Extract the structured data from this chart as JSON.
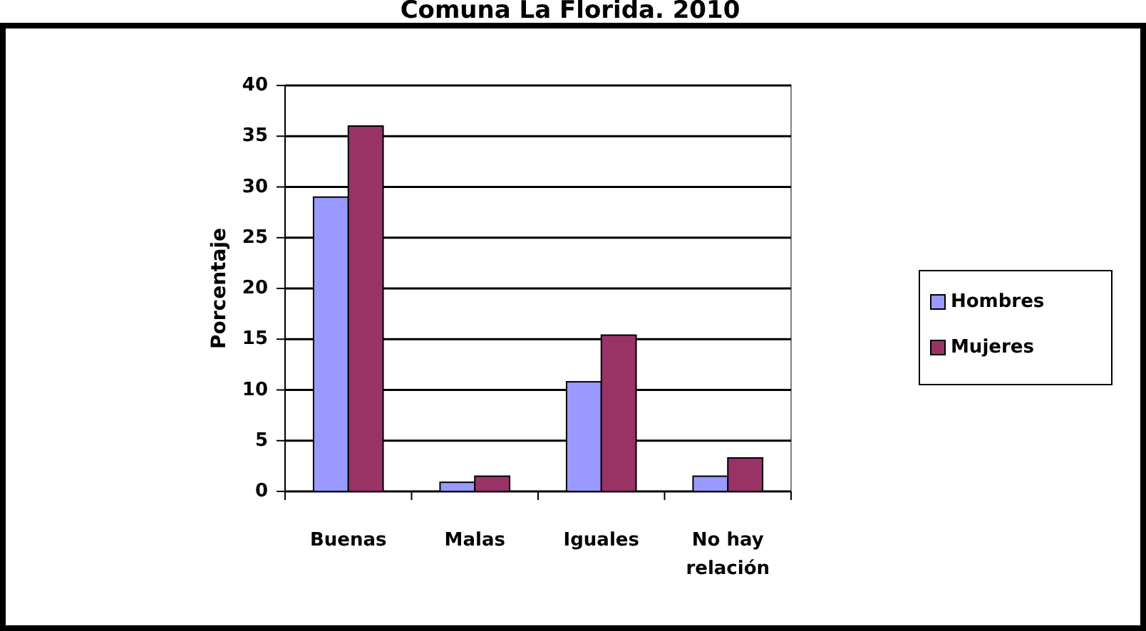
{
  "chart_data": {
    "type": "bar",
    "title": "Comuna La Florida. 2010",
    "ylabel": "Porcentaje",
    "categories": [
      "Buenas",
      "Malas",
      "Iguales",
      "No hay relación"
    ],
    "series": [
      {
        "name": "Hombres",
        "color": "#9999ff",
        "values": [
          29,
          0.9,
          10.8,
          1.5
        ]
      },
      {
        "name": "Mujeres",
        "color": "#993366",
        "values": [
          36,
          1.5,
          15.4,
          3.3
        ]
      }
    ],
    "ylim": [
      0,
      40
    ],
    "yticks": [
      0,
      5,
      10,
      15,
      20,
      25,
      30,
      35,
      40
    ],
    "grid": "y",
    "legend": "right"
  }
}
